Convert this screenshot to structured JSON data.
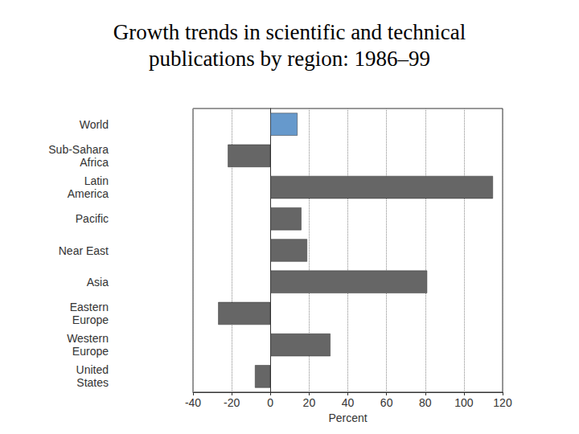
{
  "chart_data": {
    "type": "bar",
    "orientation": "horizontal",
    "title": "Growth trends in scientific and technical\npublications by region: 1986–99",
    "xlabel": "Percent",
    "categories": [
      "World",
      "Sub-Sahara\nAfrica",
      "Latin\nAmerica",
      "Pacific",
      "Near East",
      "Asia",
      "Eastern\nEurope",
      "Western\nEurope",
      "United\nStates"
    ],
    "values": [
      14,
      -22,
      115,
      16,
      19,
      81,
      -27,
      31,
      -8
    ],
    "colors": [
      "#6699cc",
      "#666666",
      "#666666",
      "#666666",
      "#666666",
      "#666666",
      "#666666",
      "#666666",
      "#666666"
    ],
    "xlim": [
      -40,
      120
    ],
    "xticks": [
      -40,
      -20,
      0,
      20,
      40,
      60,
      80,
      100,
      120
    ],
    "grid": true
  }
}
